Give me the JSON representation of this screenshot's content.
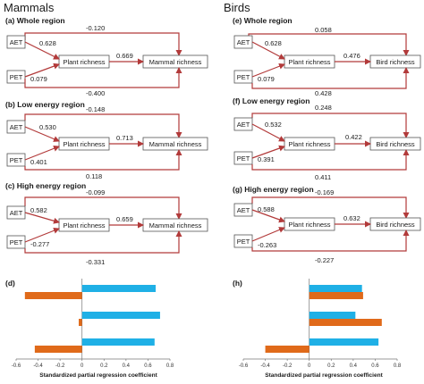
{
  "titles": {
    "left": "Mammals",
    "right": "Birds"
  },
  "colors": {
    "arrow": "#b23a3a",
    "bar_blue": "#1fb0e6",
    "bar_orange": "#e06a1a"
  },
  "labels": {
    "aet": "AET",
    "pet": "PET",
    "plant": "Plant richness",
    "mammal": "Mammal richness",
    "bird": "Bird richness"
  },
  "panels": {
    "a": {
      "label": "(a) Whole region",
      "direct": "-0.120",
      "aet_plant": "0.628",
      "pet_plant": "0.079",
      "plant_resp": "0.669",
      "pet_resp": "-0.400"
    },
    "b": {
      "label": "(b) Low energy region",
      "direct": "-0.148",
      "aet_plant": "0.530",
      "pet_plant": "0.401",
      "plant_resp": "0.713",
      "pet_resp": "0.118"
    },
    "c": {
      "label": "(c) High energy region",
      "direct": "-0.099",
      "aet_plant": "0.582",
      "pet_plant": "-0.277",
      "plant_resp": "0.659",
      "pet_resp": "-0.331"
    },
    "e": {
      "label": "(e) Whole region",
      "direct": "0.058",
      "aet_plant": "0.628",
      "pet_plant": "0.079",
      "plant_resp": "0.476",
      "pet_resp": "0.428"
    },
    "f": {
      "label": "(f) Low energy region",
      "direct": "0.248",
      "aet_plant": "0.532",
      "pet_plant": "0.391",
      "plant_resp": "0.422",
      "pet_resp": "0.411"
    },
    "g": {
      "label": "(g) High energy region",
      "direct": "-0.169",
      "aet_plant": "0.588",
      "pet_plant": "-0.263",
      "plant_resp": "0.632",
      "pet_resp": "-0.227"
    }
  },
  "chart_data": [
    {
      "type": "bar",
      "panel": "(d)",
      "orientation": "horizontal",
      "xlabel": "Standardized partial regression coefficient",
      "xlim": [
        -0.6,
        0.8
      ],
      "xticks": [
        "-0.6",
        "-0.4",
        "-0.2",
        "0",
        "0.2",
        "0.4",
        "0.6",
        "0.8"
      ],
      "groups": [
        {
          "blue": 0.67,
          "orange": -0.52
        },
        {
          "blue": 0.71,
          "orange": -0.03
        },
        {
          "blue": 0.66,
          "orange": -0.43
        }
      ]
    },
    {
      "type": "bar",
      "panel": "(h)",
      "orientation": "horizontal",
      "xlabel": "Standardized partial regression coefficient",
      "xlim": [
        -0.6,
        0.8
      ],
      "xticks": [
        "-0.6",
        "-0.4",
        "-0.2",
        "0",
        "0.2",
        "0.4",
        "0.6",
        "0.8"
      ],
      "groups": [
        {
          "blue": 0.48,
          "orange": 0.49
        },
        {
          "blue": 0.42,
          "orange": 0.66
        },
        {
          "blue": 0.63,
          "orange": -0.4
        }
      ]
    }
  ]
}
